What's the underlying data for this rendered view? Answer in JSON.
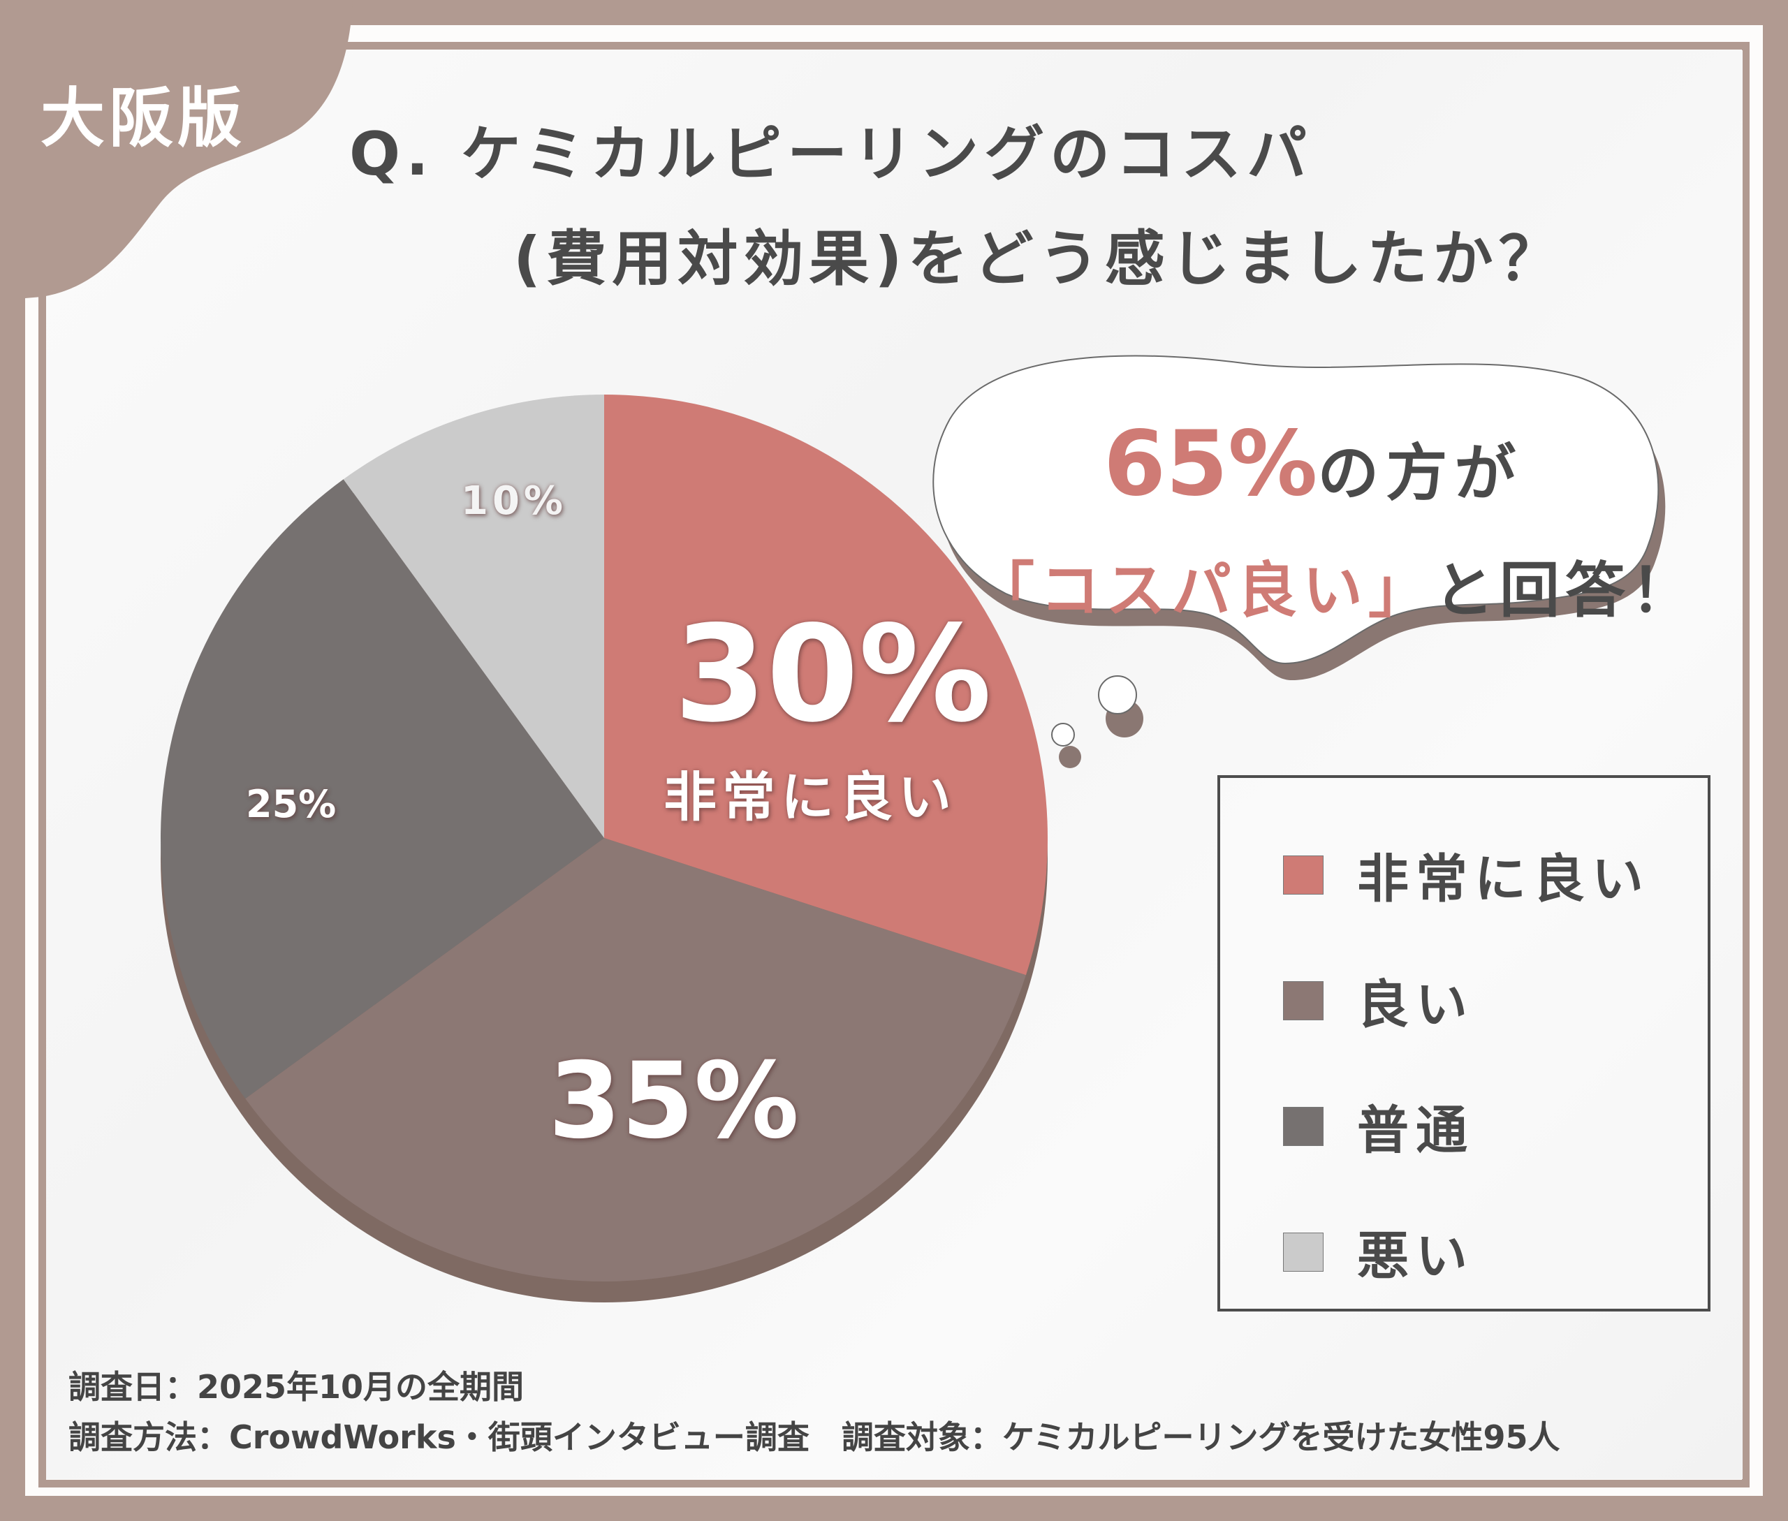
{
  "badge": {
    "label": "大阪版"
  },
  "title": {
    "line1": "Q. ケミカルピーリングのコスパ",
    "line2": "(費用対効果)をどう感じましたか？"
  },
  "callout": {
    "percent": "65%",
    "line1_rest": "の方が",
    "quote_open": "「",
    "quote_text": "コスパ良い",
    "quote_close": "」",
    "line2_rest": "と回答！"
  },
  "pie_labels": {
    "very_good_pct": "30%",
    "very_good_name": "非常に良い",
    "good_pct": "35%",
    "normal_pct": "25%",
    "bad_pct": "10%"
  },
  "legend": {
    "items": [
      {
        "label": "非常に良い",
        "color": "#cf7b75"
      },
      {
        "label": "良い",
        "color": "#8c7874"
      },
      {
        "label": "普通",
        "color": "#767170"
      },
      {
        "label": "悪い",
        "color": "#cbcbcb"
      }
    ]
  },
  "footer": {
    "date": "調査日：2025年10月の全期間",
    "method_and_target": "調査方法：CrowdWorks・街頭インタビュー調査　調査対象：ケミカルピーリングを受けた女性95人"
  },
  "colors": {
    "frame": "#b19a91",
    "accent": "#cf7b75",
    "text": "#4a4a4a",
    "shadow": "#7f6a63"
  },
  "chart_data": {
    "type": "pie",
    "title": "Q. ケミカルピーリングのコスパ(費用対効果)をどう感じましたか？",
    "categories": [
      "非常に良い",
      "良い",
      "普通",
      "悪い"
    ],
    "values": [
      30,
      35,
      25,
      10
    ],
    "unit": "%",
    "colors": [
      "#cf7b75",
      "#8c7874",
      "#767170",
      "#cbcbcb"
    ],
    "start_angle": "12 o'clock, clockwise",
    "legend_position": "right",
    "annotation": "65%の方が「コスパ良い」と回答！",
    "sample": "ケミカルピーリングを受けた女性95人",
    "survey_date": "2025年10月の全期間",
    "survey_method": "CrowdWorks・街頭インタビュー調査"
  }
}
